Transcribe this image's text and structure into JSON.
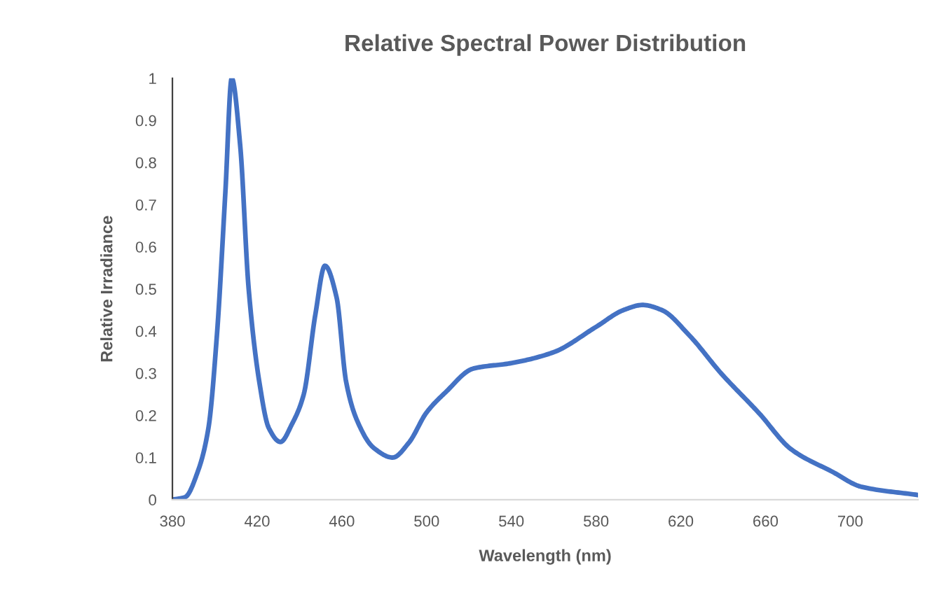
{
  "chart_data": {
    "type": "line",
    "title": "Relative Spectral Power Distribution",
    "xlabel": "Wavelength (nm)",
    "ylabel": "Relative Irradiance",
    "xlim": [
      380,
      732
    ],
    "xticks": [
      380,
      420,
      460,
      500,
      540,
      580,
      620,
      660,
      700
    ],
    "ylim": [
      0,
      1
    ],
    "yticks": [
      0,
      0.1,
      0.2,
      0.3,
      0.4,
      0.5,
      0.6,
      0.7,
      0.8,
      0.9,
      1
    ],
    "marker": "none",
    "line_style": "solid",
    "series": [
      {
        "color": "#4472c4",
        "x": [
          380,
          386,
          392,
          397,
          401,
          405,
          408,
          412,
          416,
          421,
          425.5,
          431,
          436.5,
          442,
          447.5,
          452,
          457.5,
          462,
          467,
          475,
          484,
          491.6,
          500,
          509,
          522,
          540,
          560,
          580,
          593,
          602,
          611,
          624,
          639,
          657,
          672,
          692,
          705,
          732
        ],
        "values": [
          0,
          0.006,
          0.067,
          0.17,
          0.39,
          0.73,
          1.0,
          0.84,
          0.5,
          0.28,
          0.17,
          0.137,
          0.18,
          0.25,
          0.44,
          0.555,
          0.48,
          0.28,
          0.19,
          0.123,
          0.1,
          0.135,
          0.207,
          0.255,
          0.311,
          0.324,
          0.35,
          0.41,
          0.45,
          0.462,
          0.45,
          0.39,
          0.3,
          0.205,
          0.12,
          0.065,
          0.031,
          0.011
        ]
      }
    ]
  }
}
